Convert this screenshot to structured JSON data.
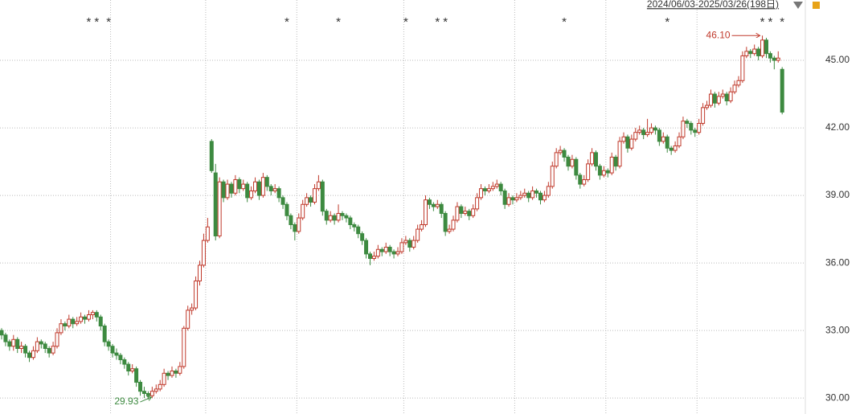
{
  "chart_data": {
    "type": "candlestick",
    "period_label": "2024/06/03-2025/03/26(198日)",
    "ylim": [
      29.29,
      47.68
    ],
    "yticks": [
      {
        "value": 30,
        "label": "30.00"
      },
      {
        "value": 33,
        "label": "33.00"
      },
      {
        "value": 36,
        "label": "36.00"
      },
      {
        "value": 39,
        "label": "39.00"
      },
      {
        "value": 42,
        "label": "42.00"
      },
      {
        "value": 45,
        "label": "45.00"
      }
    ],
    "grid": true,
    "month_starts": [
      28,
      52,
      75,
      102,
      130,
      153,
      176
    ],
    "up_color": "#c0392b",
    "down_color": "#3d8a40",
    "low_annotation": {
      "index": 37,
      "value": 29.93,
      "label": "29.93"
    },
    "high_annotation": {
      "index": 192,
      "value": 46.1,
      "label": "46.10"
    },
    "markers": [
      {
        "index": 22,
        "label": "*"
      },
      {
        "index": 24,
        "label": "*"
      },
      {
        "index": 27,
        "label": "*"
      },
      {
        "index": 72,
        "label": "*"
      },
      {
        "index": 85,
        "label": "*"
      },
      {
        "index": 102,
        "label": "*"
      },
      {
        "index": 110,
        "label": "*"
      },
      {
        "index": 112,
        "label": "*"
      },
      {
        "index": 142,
        "label": "*"
      },
      {
        "index": 168,
        "label": "*"
      },
      {
        "index": 192,
        "label": "*"
      },
      {
        "index": 194,
        "label": "*"
      },
      {
        "index": 197,
        "label": "*"
      }
    ],
    "candles": [
      [
        33.0,
        33.1,
        32.6,
        32.8
      ],
      [
        32.8,
        32.9,
        32.3,
        32.5
      ],
      [
        32.5,
        32.6,
        32.1,
        32.3
      ],
      [
        32.3,
        32.8,
        32.1,
        32.6
      ],
      [
        32.6,
        32.7,
        32.0,
        32.2
      ],
      [
        32.2,
        32.5,
        32.0,
        32.3
      ],
      [
        32.3,
        32.4,
        31.8,
        32.0
      ],
      [
        32.0,
        32.1,
        31.6,
        31.8
      ],
      [
        31.8,
        32.3,
        31.7,
        32.1
      ],
      [
        32.1,
        32.7,
        32.0,
        32.5
      ],
      [
        32.5,
        32.6,
        32.2,
        32.4
      ],
      [
        32.4,
        32.5,
        32.0,
        32.2
      ],
      [
        32.2,
        32.3,
        31.8,
        32.0
      ],
      [
        32.0,
        32.5,
        31.9,
        32.3
      ],
      [
        32.3,
        33.1,
        32.2,
        32.9
      ],
      [
        32.9,
        33.5,
        32.8,
        33.3
      ],
      [
        33.3,
        33.4,
        33.0,
        33.2
      ],
      [
        33.2,
        33.7,
        33.1,
        33.5
      ],
      [
        33.5,
        33.6,
        33.1,
        33.3
      ],
      [
        33.3,
        33.6,
        33.2,
        33.4
      ],
      [
        33.4,
        33.8,
        33.3,
        33.6
      ],
      [
        33.6,
        33.7,
        33.3,
        33.5
      ],
      [
        33.5,
        33.9,
        33.4,
        33.7
      ],
      [
        33.7,
        33.9,
        33.5,
        33.8
      ],
      [
        33.8,
        33.9,
        33.4,
        33.6
      ],
      [
        33.6,
        33.7,
        33.0,
        33.2
      ],
      [
        33.2,
        33.3,
        32.3,
        32.5
      ],
      [
        32.5,
        32.6,
        32.1,
        32.3
      ],
      [
        32.3,
        32.4,
        31.8,
        32.0
      ],
      [
        32.0,
        32.2,
        31.7,
        31.9
      ],
      [
        31.9,
        32.0,
        31.5,
        31.7
      ],
      [
        31.7,
        31.8,
        31.3,
        31.5
      ],
      [
        31.5,
        31.6,
        31.0,
        31.2
      ],
      [
        31.2,
        31.5,
        31.1,
        31.3
      ],
      [
        31.3,
        31.4,
        30.5,
        30.7
      ],
      [
        30.7,
        30.8,
        30.1,
        30.3
      ],
      [
        30.3,
        30.5,
        30.0,
        30.2
      ],
      [
        30.2,
        30.3,
        29.93,
        30.1
      ],
      [
        30.1,
        30.5,
        30.0,
        30.3
      ],
      [
        30.3,
        30.6,
        30.2,
        30.4
      ],
      [
        30.4,
        30.8,
        30.3,
        30.6
      ],
      [
        30.6,
        31.3,
        30.5,
        31.1
      ],
      [
        31.1,
        31.2,
        30.8,
        31.0
      ],
      [
        31.0,
        31.4,
        30.9,
        31.2
      ],
      [
        31.2,
        31.3,
        30.9,
        31.1
      ],
      [
        31.1,
        31.6,
        31.0,
        31.4
      ],
      [
        31.4,
        33.2,
        31.3,
        33.1
      ],
      [
        33.1,
        34.1,
        33.0,
        33.9
      ],
      [
        33.9,
        34.2,
        33.7,
        34.0
      ],
      [
        34.0,
        35.4,
        33.9,
        35.2
      ],
      [
        35.2,
        36.1,
        35.0,
        35.9
      ],
      [
        35.9,
        37.3,
        35.8,
        37.0
      ],
      [
        37.0,
        38.0,
        36.9,
        37.6
      ],
      [
        41.4,
        41.5,
        40.0,
        40.1
      ],
      [
        40.0,
        40.4,
        37.0,
        37.2
      ],
      [
        37.2,
        39.8,
        37.1,
        39.6
      ],
      [
        39.6,
        39.7,
        38.7,
        38.9
      ],
      [
        38.9,
        39.7,
        38.8,
        39.5
      ],
      [
        39.5,
        39.6,
        38.9,
        39.1
      ],
      [
        39.1,
        39.9,
        39.0,
        39.7
      ],
      [
        39.7,
        39.8,
        39.1,
        39.3
      ],
      [
        39.3,
        39.7,
        39.2,
        39.5
      ],
      [
        39.5,
        39.6,
        38.7,
        38.9
      ],
      [
        38.9,
        39.4,
        38.8,
        39.2
      ],
      [
        39.2,
        39.8,
        39.1,
        39.6
      ],
      [
        39.6,
        39.7,
        38.8,
        39.0
      ],
      [
        39.0,
        40.0,
        38.9,
        39.8
      ],
      [
        39.8,
        39.9,
        39.2,
        39.4
      ],
      [
        39.4,
        39.5,
        39.0,
        39.2
      ],
      [
        39.2,
        39.5,
        39.1,
        39.3
      ],
      [
        39.3,
        39.4,
        38.7,
        38.9
      ],
      [
        38.9,
        39.0,
        38.4,
        38.6
      ],
      [
        38.6,
        38.7,
        37.9,
        38.1
      ],
      [
        38.1,
        38.2,
        37.5,
        37.7
      ],
      [
        37.7,
        37.8,
        37.0,
        37.4
      ],
      [
        37.4,
        38.2,
        37.3,
        38.0
      ],
      [
        38.0,
        38.8,
        37.9,
        38.6
      ],
      [
        38.6,
        39.1,
        38.5,
        38.9
      ],
      [
        38.9,
        39.0,
        38.5,
        38.7
      ],
      [
        38.7,
        39.5,
        38.6,
        39.3
      ],
      [
        39.3,
        39.9,
        39.2,
        39.6
      ],
      [
        39.6,
        39.7,
        38.1,
        38.3
      ],
      [
        38.3,
        38.4,
        37.7,
        37.9
      ],
      [
        37.9,
        38.3,
        37.8,
        38.1
      ],
      [
        38.1,
        38.2,
        37.7,
        37.9
      ],
      [
        37.9,
        38.6,
        37.8,
        38.2
      ],
      [
        38.2,
        38.3,
        37.9,
        38.1
      ],
      [
        38.1,
        38.2,
        37.8,
        38.0
      ],
      [
        38.0,
        38.1,
        37.5,
        37.7
      ],
      [
        37.7,
        37.8,
        37.4,
        37.6
      ],
      [
        37.6,
        37.7,
        37.1,
        37.3
      ],
      [
        37.3,
        37.4,
        36.8,
        37.0
      ],
      [
        37.0,
        37.1,
        36.2,
        36.4
      ],
      [
        36.4,
        36.5,
        35.9,
        36.2
      ],
      [
        36.2,
        36.5,
        36.1,
        36.3
      ],
      [
        36.3,
        36.8,
        36.2,
        36.6
      ],
      [
        36.6,
        36.7,
        36.3,
        36.5
      ],
      [
        36.5,
        36.9,
        36.4,
        36.7
      ],
      [
        36.7,
        36.8,
        36.3,
        36.5
      ],
      [
        36.5,
        36.6,
        36.2,
        36.4
      ],
      [
        36.4,
        36.7,
        36.3,
        36.5
      ],
      [
        36.5,
        37.1,
        36.4,
        36.9
      ],
      [
        36.9,
        37.2,
        36.8,
        37.0
      ],
      [
        37.0,
        37.1,
        36.5,
        36.7
      ],
      [
        36.7,
        37.2,
        36.6,
        37.0
      ],
      [
        37.0,
        37.7,
        36.9,
        37.5
      ],
      [
        37.5,
        37.9,
        37.4,
        37.7
      ],
      [
        37.7,
        39.0,
        37.6,
        38.8
      ],
      [
        38.8,
        38.9,
        38.4,
        38.6
      ],
      [
        38.6,
        38.7,
        38.3,
        38.5
      ],
      [
        38.5,
        38.8,
        38.4,
        38.6
      ],
      [
        38.6,
        38.7,
        38.0,
        38.2
      ],
      [
        38.2,
        38.3,
        37.2,
        37.4
      ],
      [
        37.4,
        37.7,
        37.3,
        37.5
      ],
      [
        37.5,
        38.1,
        37.4,
        37.9
      ],
      [
        37.9,
        38.7,
        37.8,
        38.5
      ],
      [
        38.5,
        38.6,
        38.0,
        38.2
      ],
      [
        38.2,
        38.5,
        38.1,
        38.3
      ],
      [
        38.3,
        38.4,
        37.9,
        38.1
      ],
      [
        38.1,
        38.6,
        38.0,
        38.4
      ],
      [
        38.4,
        39.1,
        38.3,
        38.9
      ],
      [
        38.9,
        39.5,
        38.8,
        39.3
      ],
      [
        39.3,
        39.4,
        39.0,
        39.2
      ],
      [
        39.2,
        39.5,
        39.1,
        39.3
      ],
      [
        39.3,
        39.6,
        39.2,
        39.4
      ],
      [
        39.4,
        39.7,
        39.3,
        39.5
      ],
      [
        39.5,
        39.6,
        39.0,
        39.2
      ],
      [
        39.2,
        39.3,
        38.4,
        38.6
      ],
      [
        38.6,
        39.1,
        38.5,
        38.9
      ],
      [
        38.9,
        39.0,
        38.6,
        38.8
      ],
      [
        38.8,
        39.1,
        38.7,
        38.9
      ],
      [
        38.9,
        39.2,
        38.8,
        39.0
      ],
      [
        39.0,
        39.3,
        38.9,
        39.1
      ],
      [
        39.1,
        39.2,
        38.7,
        38.9
      ],
      [
        38.9,
        39.4,
        38.8,
        39.2
      ],
      [
        39.2,
        39.3,
        38.9,
        39.1
      ],
      [
        39.1,
        39.2,
        38.6,
        38.8
      ],
      [
        38.8,
        39.2,
        38.7,
        39.0
      ],
      [
        39.0,
        39.6,
        38.9,
        39.4
      ],
      [
        39.4,
        40.5,
        39.3,
        40.3
      ],
      [
        40.3,
        41.1,
        40.2,
        40.9
      ],
      [
        40.9,
        41.2,
        40.8,
        41.0
      ],
      [
        41.0,
        41.1,
        40.5,
        40.7
      ],
      [
        40.7,
        40.8,
        40.1,
        40.3
      ],
      [
        40.3,
        40.8,
        40.2,
        40.6
      ],
      [
        40.6,
        40.7,
        39.7,
        39.9
      ],
      [
        39.9,
        40.0,
        39.3,
        39.5
      ],
      [
        39.5,
        39.9,
        39.4,
        39.7
      ],
      [
        39.7,
        40.6,
        39.6,
        40.4
      ],
      [
        40.4,
        41.1,
        40.3,
        40.9
      ],
      [
        40.9,
        41.0,
        40.1,
        40.3
      ],
      [
        40.3,
        40.4,
        39.7,
        39.9
      ],
      [
        39.9,
        40.3,
        39.8,
        40.1
      ],
      [
        40.1,
        40.2,
        39.8,
        40.0
      ],
      [
        40.0,
        40.9,
        39.9,
        40.7
      ],
      [
        40.7,
        40.8,
        40.1,
        40.3
      ],
      [
        40.3,
        41.6,
        40.2,
        41.4
      ],
      [
        41.4,
        41.8,
        41.3,
        41.6
      ],
      [
        41.6,
        41.7,
        40.9,
        41.1
      ],
      [
        41.1,
        41.7,
        41.0,
        41.5
      ],
      [
        41.5,
        42.0,
        41.4,
        41.8
      ],
      [
        41.8,
        42.1,
        41.7,
        41.9
      ],
      [
        41.9,
        42.0,
        41.5,
        41.7
      ],
      [
        41.7,
        42.4,
        41.6,
        41.8
      ],
      [
        41.8,
        42.2,
        41.7,
        42.0
      ],
      [
        42.0,
        42.1,
        41.7,
        41.9
      ],
      [
        41.9,
        42.0,
        41.2,
        41.4
      ],
      [
        41.4,
        41.8,
        41.3,
        41.6
      ],
      [
        41.6,
        41.7,
        40.9,
        41.1
      ],
      [
        41.1,
        41.2,
        40.8,
        41.0
      ],
      [
        41.0,
        41.4,
        40.9,
        41.2
      ],
      [
        41.2,
        41.8,
        41.1,
        41.6
      ],
      [
        41.6,
        42.5,
        41.5,
        42.3
      ],
      [
        42.3,
        42.4,
        42.0,
        42.2
      ],
      [
        42.2,
        42.3,
        41.7,
        41.9
      ],
      [
        41.9,
        42.0,
        41.6,
        41.8
      ],
      [
        41.8,
        42.4,
        41.7,
        42.2
      ],
      [
        42.2,
        43.1,
        42.1,
        42.9
      ],
      [
        42.9,
        43.2,
        42.8,
        43.0
      ],
      [
        43.0,
        43.7,
        42.9,
        43.5
      ],
      [
        43.5,
        43.6,
        42.9,
        43.1
      ],
      [
        43.1,
        43.6,
        43.0,
        43.4
      ],
      [
        43.4,
        43.7,
        43.3,
        43.5
      ],
      [
        43.5,
        43.6,
        43.0,
        43.2
      ],
      [
        43.2,
        43.8,
        43.1,
        43.6
      ],
      [
        43.6,
        44.1,
        43.5,
        43.9
      ],
      [
        43.9,
        44.3,
        43.8,
        44.1
      ],
      [
        44.1,
        45.4,
        44.0,
        45.2
      ],
      [
        45.2,
        45.6,
        45.1,
        45.4
      ],
      [
        45.4,
        45.5,
        45.1,
        45.3
      ],
      [
        45.3,
        45.7,
        45.2,
        45.5
      ],
      [
        45.5,
        45.6,
        45.0,
        45.2
      ],
      [
        45.2,
        46.1,
        45.1,
        45.9
      ],
      [
        45.9,
        46.0,
        45.1,
        45.3
      ],
      [
        45.3,
        45.4,
        44.9,
        45.1
      ],
      [
        45.1,
        45.2,
        44.6,
        45.0
      ],
      [
        45.0,
        45.4,
        44.9,
        45.1
      ],
      [
        44.6,
        44.7,
        42.6,
        42.7
      ]
    ]
  }
}
